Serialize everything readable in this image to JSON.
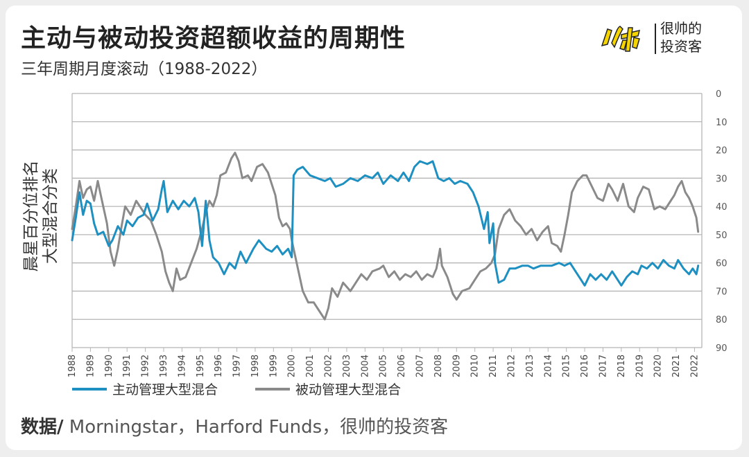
{
  "header": {
    "title": "主动与被动投资超额收益的周期性",
    "subtitle": "三年周期月度滚动（1988-2022）"
  },
  "brand": {
    "name_line1": "很帅的",
    "name_line2": "投资客",
    "logo_icon": "yellow-calligraphy-logo-icon"
  },
  "source": {
    "label": "数据/",
    "text": " Morningstar，Harford Funds，很帅的投资客"
  },
  "chart_data": {
    "type": "line",
    "ylabel_line1": "晨星百分位排名",
    "ylabel_line2": "大型混合分类",
    "ylim": [
      0,
      90
    ],
    "y_inverted": true,
    "y_axis_side": "right",
    "yticks": [
      0,
      10,
      20,
      30,
      40,
      50,
      60,
      70,
      80,
      90
    ],
    "xlim": [
      1988,
      2022.4
    ],
    "xticks": [
      1988,
      1989,
      1990,
      1991,
      1992,
      1993,
      1994,
      1995,
      1996,
      1997,
      1998,
      1999,
      2000,
      2001,
      2002,
      2003,
      2004,
      2005,
      2006,
      2007,
      2008,
      2009,
      2010,
      2011,
      2012,
      2013,
      2014,
      2015,
      2016,
      2017,
      2018,
      2019,
      2020,
      2021,
      2022
    ],
    "grid": "horizontal",
    "legend_position": "bottom-left",
    "series": [
      {
        "name": "主动管理大型混合",
        "color": "#1d8fc0",
        "points": [
          [
            1988.0,
            52
          ],
          [
            1988.2,
            44
          ],
          [
            1988.4,
            35
          ],
          [
            1988.6,
            43
          ],
          [
            1988.8,
            38
          ],
          [
            1989.0,
            39
          ],
          [
            1989.2,
            46
          ],
          [
            1989.4,
            50
          ],
          [
            1989.7,
            49
          ],
          [
            1990.0,
            54
          ],
          [
            1990.2,
            52
          ],
          [
            1990.5,
            47
          ],
          [
            1990.8,
            50
          ],
          [
            1991.0,
            45
          ],
          [
            1991.3,
            47
          ],
          [
            1991.6,
            44
          ],
          [
            1991.9,
            43
          ],
          [
            1992.1,
            39
          ],
          [
            1992.4,
            45
          ],
          [
            1992.7,
            41
          ],
          [
            1992.9,
            34
          ],
          [
            1993.0,
            31
          ],
          [
            1993.2,
            42
          ],
          [
            1993.5,
            38
          ],
          [
            1993.8,
            41
          ],
          [
            1994.1,
            38
          ],
          [
            1994.4,
            40
          ],
          [
            1994.7,
            37
          ],
          [
            1994.9,
            42
          ],
          [
            1995.1,
            54
          ],
          [
            1995.3,
            38
          ],
          [
            1995.5,
            52
          ],
          [
            1995.7,
            58
          ],
          [
            1996.0,
            60
          ],
          [
            1996.3,
            64
          ],
          [
            1996.6,
            60
          ],
          [
            1996.9,
            62
          ],
          [
            1997.2,
            56
          ],
          [
            1997.5,
            60
          ],
          [
            1997.9,
            55
          ],
          [
            1998.2,
            52
          ],
          [
            1998.6,
            55
          ],
          [
            1998.9,
            56
          ],
          [
            1999.2,
            54
          ],
          [
            1999.5,
            57
          ],
          [
            1999.8,
            55
          ],
          [
            2000.0,
            58
          ],
          [
            2000.1,
            29
          ],
          [
            2000.3,
            27
          ],
          [
            2000.6,
            26
          ],
          [
            2001.0,
            29
          ],
          [
            2001.4,
            30
          ],
          [
            2001.8,
            31
          ],
          [
            2002.1,
            30
          ],
          [
            2002.4,
            33
          ],
          [
            2002.8,
            32
          ],
          [
            2003.2,
            30
          ],
          [
            2003.6,
            31
          ],
          [
            2004.0,
            29
          ],
          [
            2004.4,
            30
          ],
          [
            2004.7,
            28
          ],
          [
            2005.0,
            32
          ],
          [
            2005.4,
            29
          ],
          [
            2005.8,
            31
          ],
          [
            2006.1,
            28
          ],
          [
            2006.4,
            31
          ],
          [
            2006.7,
            26
          ],
          [
            2007.0,
            24
          ],
          [
            2007.4,
            25
          ],
          [
            2007.7,
            24
          ],
          [
            2008.0,
            30
          ],
          [
            2008.3,
            31
          ],
          [
            2008.6,
            30
          ],
          [
            2008.9,
            32
          ],
          [
            2009.2,
            31
          ],
          [
            2009.6,
            32
          ],
          [
            2009.9,
            35
          ],
          [
            2010.2,
            40
          ],
          [
            2010.5,
            48
          ],
          [
            2010.7,
            42
          ],
          [
            2010.8,
            53
          ],
          [
            2011.0,
            46
          ],
          [
            2011.1,
            60
          ],
          [
            2011.3,
            67
          ],
          [
            2011.6,
            66
          ],
          [
            2011.9,
            62
          ],
          [
            2012.2,
            62
          ],
          [
            2012.6,
            61
          ],
          [
            2012.9,
            61
          ],
          [
            2013.2,
            62
          ],
          [
            2013.6,
            61
          ],
          [
            2013.9,
            61
          ],
          [
            2014.2,
            61
          ],
          [
            2014.6,
            60
          ],
          [
            2014.9,
            61
          ],
          [
            2015.2,
            60
          ],
          [
            2015.5,
            63
          ],
          [
            2015.8,
            66
          ],
          [
            2016.0,
            68
          ],
          [
            2016.3,
            64
          ],
          [
            2016.6,
            66
          ],
          [
            2016.9,
            64
          ],
          [
            2017.2,
            66
          ],
          [
            2017.5,
            63
          ],
          [
            2017.8,
            66
          ],
          [
            2018.0,
            68
          ],
          [
            2018.3,
            65
          ],
          [
            2018.6,
            63
          ],
          [
            2018.9,
            64
          ],
          [
            2019.1,
            61
          ],
          [
            2019.4,
            62
          ],
          [
            2019.7,
            60
          ],
          [
            2020.0,
            62
          ],
          [
            2020.3,
            59
          ],
          [
            2020.6,
            61
          ],
          [
            2020.9,
            62
          ],
          [
            2021.1,
            59
          ],
          [
            2021.4,
            62
          ],
          [
            2021.7,
            64
          ],
          [
            2021.9,
            62
          ],
          [
            2022.1,
            64
          ],
          [
            2022.2,
            61
          ]
        ]
      },
      {
        "name": "被动管理大型混合",
        "color": "#8a8a8a",
        "points": [
          [
            1988.0,
            48
          ],
          [
            1988.2,
            40
          ],
          [
            1988.4,
            31
          ],
          [
            1988.6,
            37
          ],
          [
            1988.8,
            34
          ],
          [
            1989.0,
            33
          ],
          [
            1989.2,
            38
          ],
          [
            1989.4,
            31
          ],
          [
            1989.6,
            37
          ],
          [
            1989.9,
            46
          ],
          [
            1990.1,
            56
          ],
          [
            1990.3,
            61
          ],
          [
            1990.5,
            55
          ],
          [
            1990.7,
            47
          ],
          [
            1990.9,
            40
          ],
          [
            1991.2,
            43
          ],
          [
            1991.5,
            38
          ],
          [
            1991.7,
            40
          ],
          [
            1992.0,
            43
          ],
          [
            1992.3,
            45
          ],
          [
            1992.6,
            50
          ],
          [
            1992.9,
            56
          ],
          [
            1993.1,
            63
          ],
          [
            1993.3,
            67
          ],
          [
            1993.5,
            70
          ],
          [
            1993.7,
            62
          ],
          [
            1993.9,
            66
          ],
          [
            1994.2,
            65
          ],
          [
            1994.5,
            60
          ],
          [
            1994.8,
            55
          ],
          [
            1995.1,
            48
          ],
          [
            1995.3,
            42
          ],
          [
            1995.5,
            38
          ],
          [
            1995.7,
            40
          ],
          [
            1995.9,
            36
          ],
          [
            1996.1,
            29
          ],
          [
            1996.4,
            28
          ],
          [
            1996.7,
            23
          ],
          [
            1996.9,
            21
          ],
          [
            1997.1,
            24
          ],
          [
            1997.3,
            30
          ],
          [
            1997.6,
            29
          ],
          [
            1997.8,
            31
          ],
          [
            1998.1,
            26
          ],
          [
            1998.4,
            25
          ],
          [
            1998.7,
            28
          ],
          [
            1998.9,
            32
          ],
          [
            1999.1,
            36
          ],
          [
            1999.3,
            44
          ],
          [
            1999.5,
            47
          ],
          [
            1999.7,
            46
          ],
          [
            1999.9,
            48
          ],
          [
            2000.0,
            52
          ],
          [
            2000.2,
            58
          ],
          [
            2000.4,
            64
          ],
          [
            2000.6,
            70
          ],
          [
            2000.9,
            74
          ],
          [
            2001.2,
            74
          ],
          [
            2001.5,
            77
          ],
          [
            2001.8,
            80
          ],
          [
            2002.0,
            76
          ],
          [
            2002.2,
            69
          ],
          [
            2002.5,
            72
          ],
          [
            2002.8,
            67
          ],
          [
            2003.2,
            70
          ],
          [
            2003.5,
            67
          ],
          [
            2003.8,
            64
          ],
          [
            2004.1,
            66
          ],
          [
            2004.4,
            63
          ],
          [
            2004.8,
            62
          ],
          [
            2005.0,
            61
          ],
          [
            2005.3,
            65
          ],
          [
            2005.6,
            63
          ],
          [
            2005.9,
            66
          ],
          [
            2006.2,
            64
          ],
          [
            2006.5,
            65
          ],
          [
            2006.8,
            63
          ],
          [
            2007.1,
            66
          ],
          [
            2007.4,
            64
          ],
          [
            2007.7,
            65
          ],
          [
            2007.9,
            62
          ],
          [
            2008.1,
            55
          ],
          [
            2008.2,
            61
          ],
          [
            2008.5,
            65
          ],
          [
            2008.8,
            71
          ],
          [
            2009.0,
            73
          ],
          [
            2009.3,
            70
          ],
          [
            2009.7,
            69
          ],
          [
            2010.0,
            66
          ],
          [
            2010.3,
            63
          ],
          [
            2010.6,
            62
          ],
          [
            2010.9,
            60
          ],
          [
            2011.1,
            57
          ],
          [
            2011.3,
            48
          ],
          [
            2011.6,
            43
          ],
          [
            2011.9,
            41
          ],
          [
            2012.2,
            45
          ],
          [
            2012.5,
            47
          ],
          [
            2012.8,
            50
          ],
          [
            2013.1,
            48
          ],
          [
            2013.4,
            52
          ],
          [
            2013.7,
            49
          ],
          [
            2014.0,
            47
          ],
          [
            2014.2,
            53
          ],
          [
            2014.5,
            54
          ],
          [
            2014.7,
            56
          ],
          [
            2014.9,
            50
          ],
          [
            2015.1,
            43
          ],
          [
            2015.3,
            35
          ],
          [
            2015.6,
            31
          ],
          [
            2015.9,
            29
          ],
          [
            2016.1,
            29
          ],
          [
            2016.4,
            33
          ],
          [
            2016.7,
            37
          ],
          [
            2017.0,
            38
          ],
          [
            2017.3,
            32
          ],
          [
            2017.5,
            34
          ],
          [
            2017.8,
            38
          ],
          [
            2018.1,
            32
          ],
          [
            2018.4,
            40
          ],
          [
            2018.7,
            42
          ],
          [
            2018.9,
            37
          ],
          [
            2019.2,
            33
          ],
          [
            2019.5,
            34
          ],
          [
            2019.8,
            41
          ],
          [
            2020.1,
            40
          ],
          [
            2020.4,
            41
          ],
          [
            2020.7,
            38
          ],
          [
            2020.9,
            36
          ],
          [
            2021.1,
            33
          ],
          [
            2021.3,
            31
          ],
          [
            2021.5,
            35
          ],
          [
            2021.7,
            37
          ],
          [
            2021.9,
            40
          ],
          [
            2022.1,
            44
          ],
          [
            2022.2,
            49
          ]
        ]
      }
    ]
  }
}
